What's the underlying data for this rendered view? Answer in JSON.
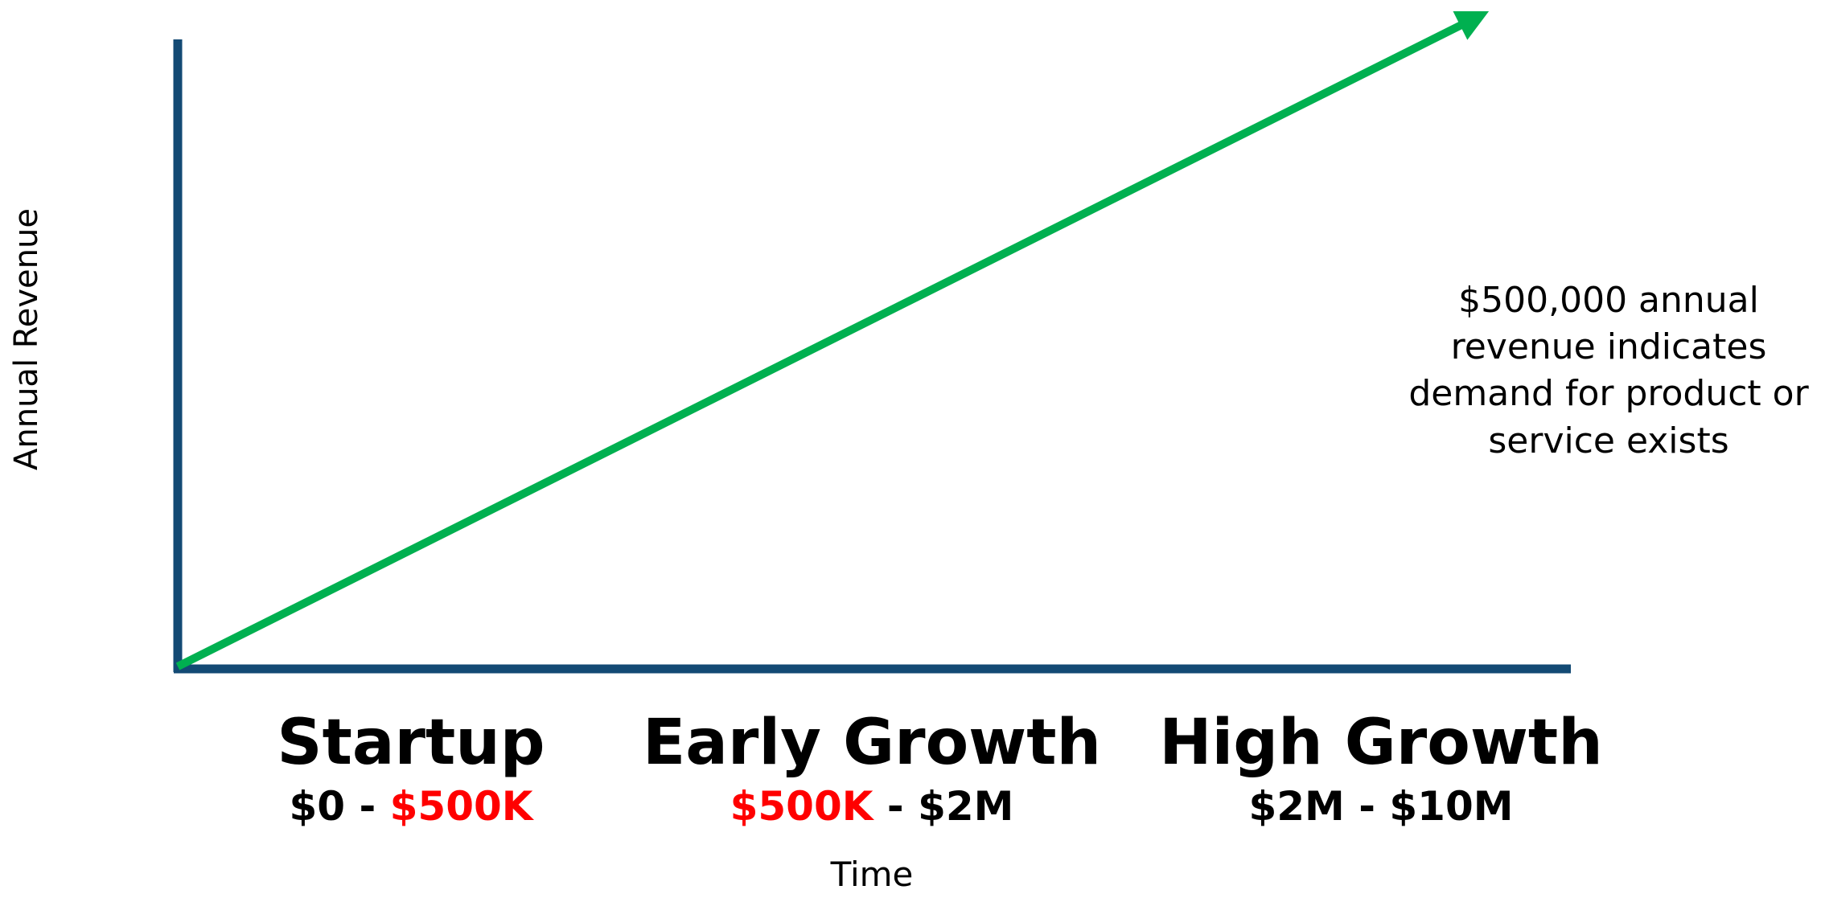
{
  "y_axis_label": "Annual Revenue",
  "x_axis_label": "Time",
  "annotation": [
    "$500,000 annual",
    "revenue indicates",
    "demand for product or",
    "service exists"
  ],
  "stages": [
    {
      "name": "Startup",
      "range": [
        {
          "text": "$0",
          "color": "#000000"
        },
        {
          "text": " - ",
          "color": "#000000"
        },
        {
          "text": "$500K",
          "color": "#ff0000"
        }
      ]
    },
    {
      "name": "Early Growth",
      "range": [
        {
          "text": "$500K",
          "color": "#ff0000"
        },
        {
          "text": " - ",
          "color": "#000000"
        },
        {
          "text": "$2M",
          "color": "#000000"
        }
      ]
    },
    {
      "name": "High Growth",
      "range": [
        {
          "text": "$2M",
          "color": "#000000"
        },
        {
          "text": " - ",
          "color": "#000000"
        },
        {
          "text": "$10M",
          "color": "#000000"
        }
      ]
    }
  ]
}
